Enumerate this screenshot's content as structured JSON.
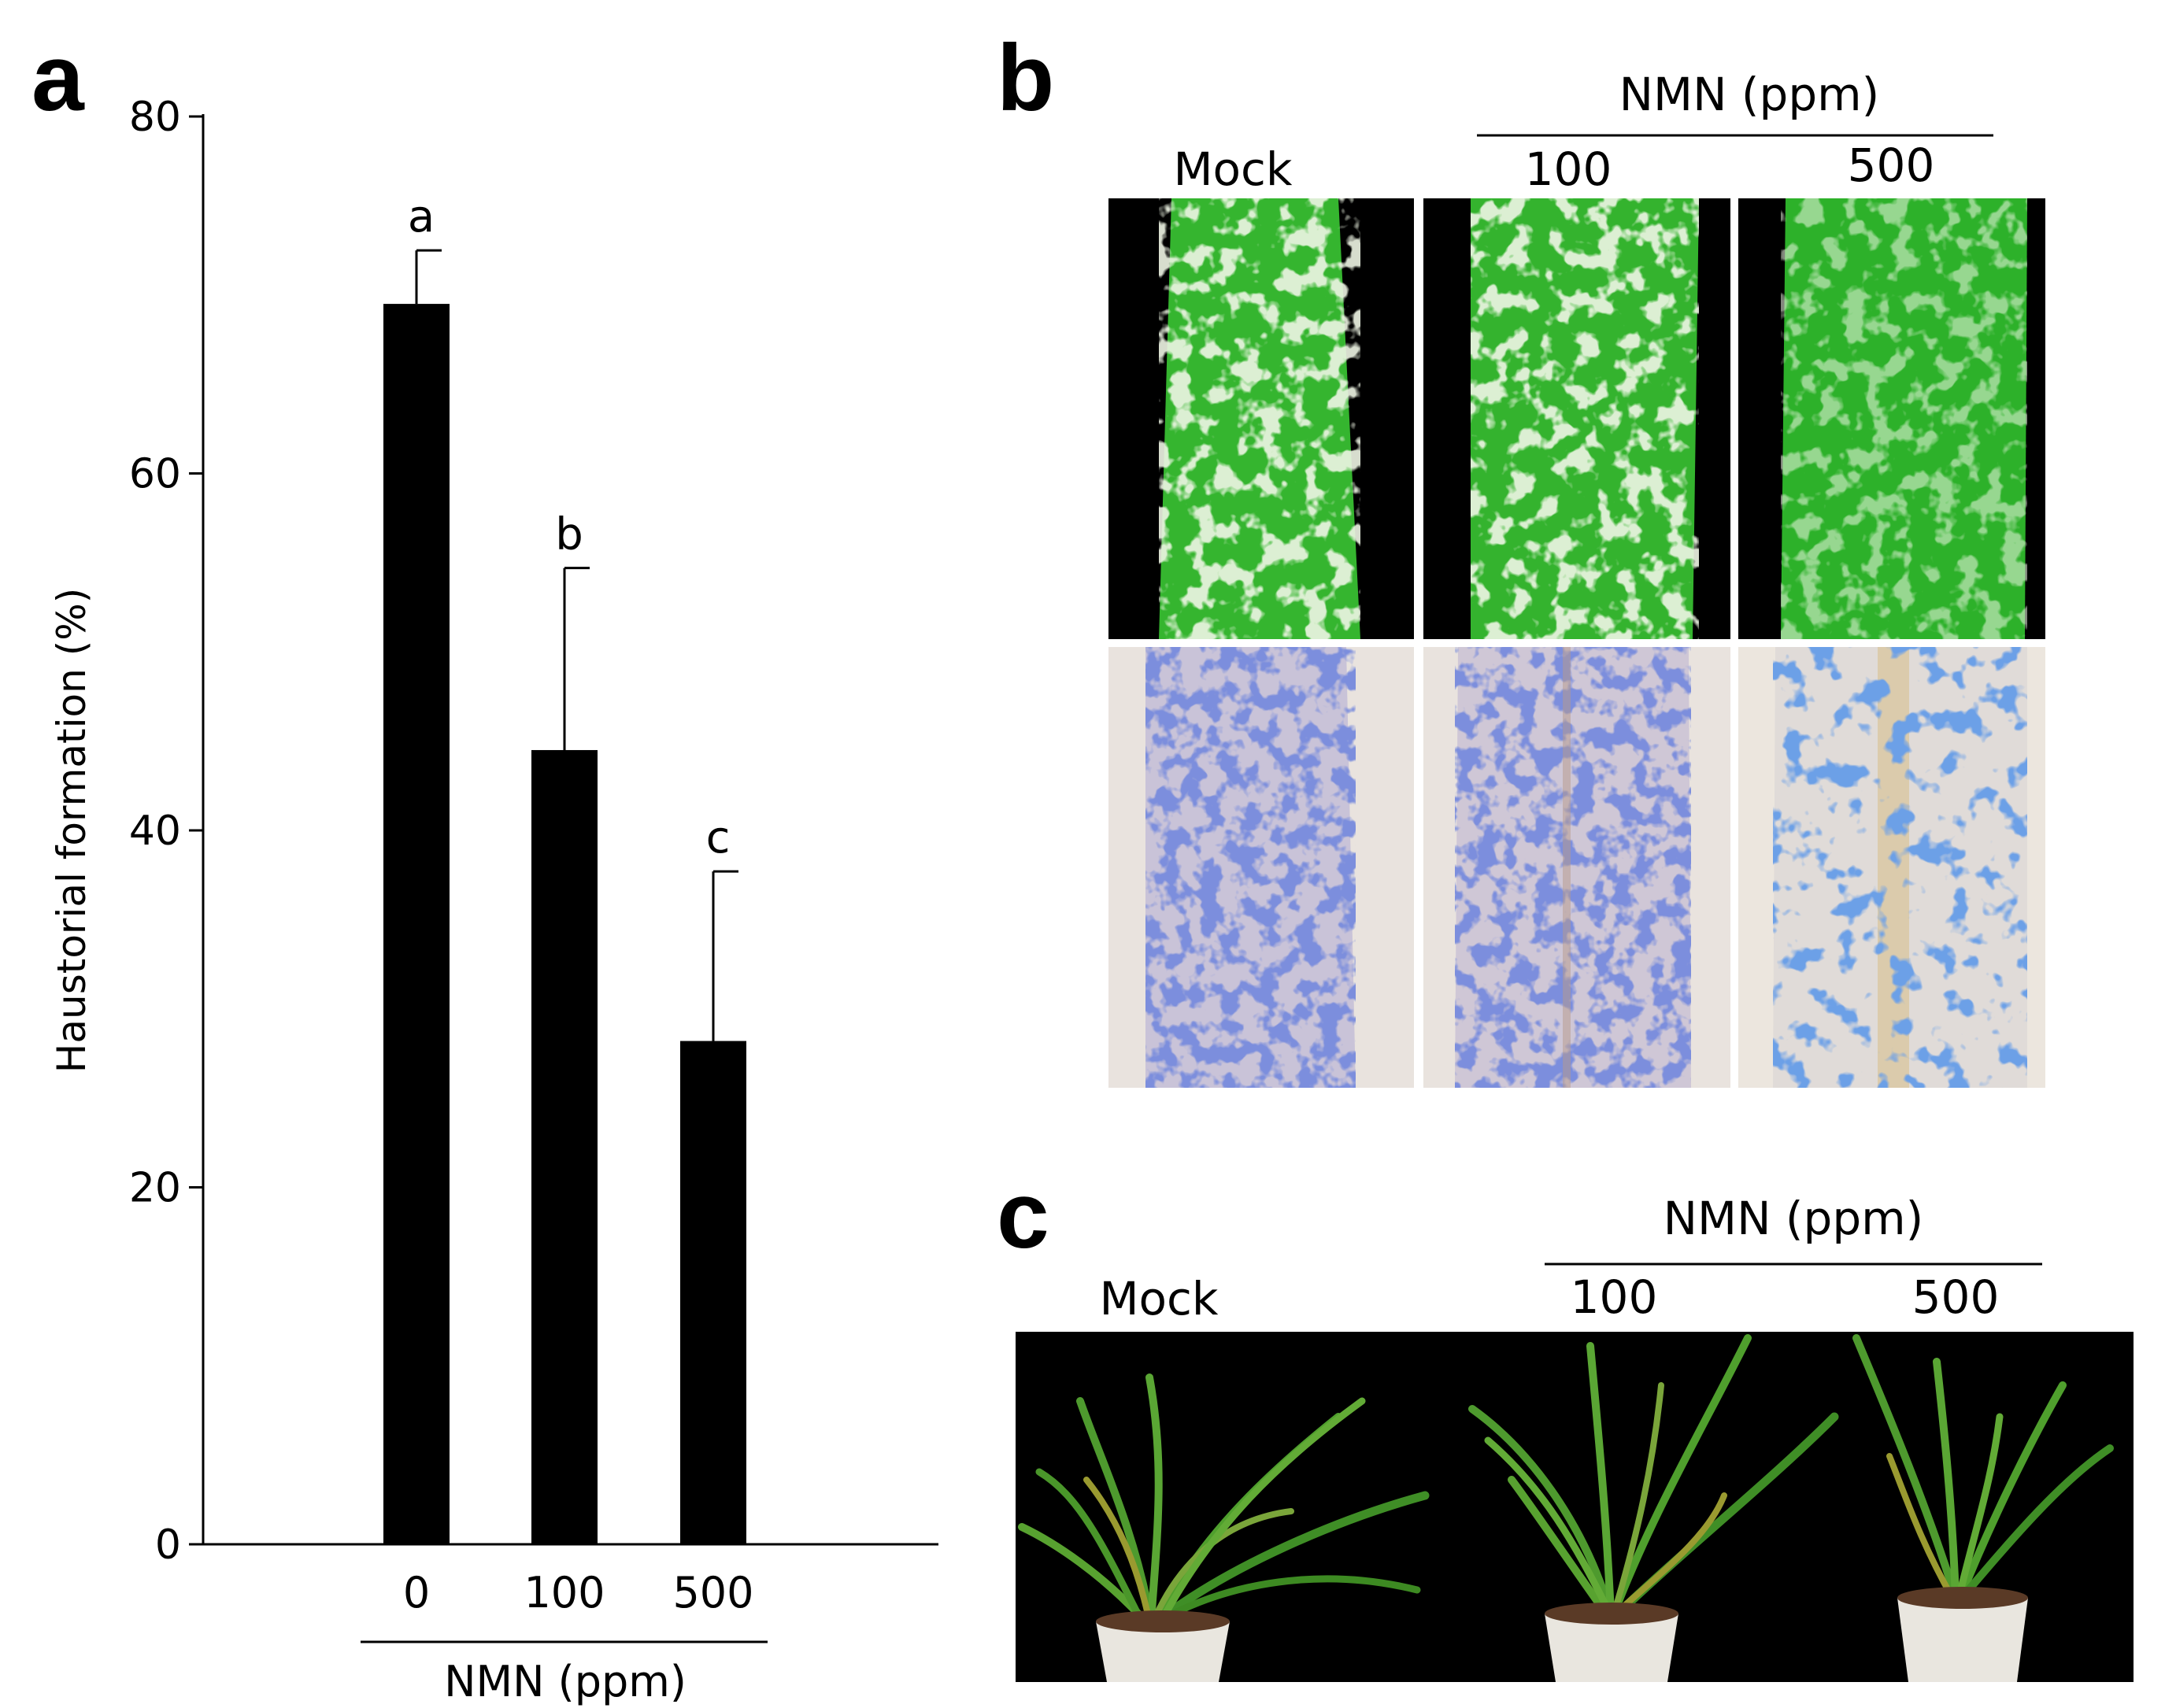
{
  "panels": {
    "a": {
      "letter": "a"
    },
    "b": {
      "letter": "b",
      "group_label": "NMN (ppm)",
      "columns": [
        "Mock",
        "100",
        "500"
      ]
    },
    "c": {
      "letter": "c",
      "group_label": "NMN (ppm)",
      "columns": [
        "Mock",
        "100",
        "500"
      ]
    }
  },
  "colors": {
    "bar": "#000000",
    "leaf_green": "#2fb52b",
    "stain_blue": "#3a4fb0",
    "photo_bg": "#000000"
  },
  "chart_data": {
    "type": "bar",
    "categories": [
      "0",
      "100",
      "500"
    ],
    "values": [
      69.5,
      44.5,
      28.2
    ],
    "errors": [
      3.0,
      10.2,
      9.5
    ],
    "significance": [
      "a",
      "b",
      "c"
    ],
    "ylabel": "Haustorial formation (%)",
    "xlabel": "NMN (ppm)",
    "ylim": [
      0,
      80
    ],
    "yticks": [
      0,
      20,
      40,
      60,
      80
    ],
    "grid": false
  }
}
